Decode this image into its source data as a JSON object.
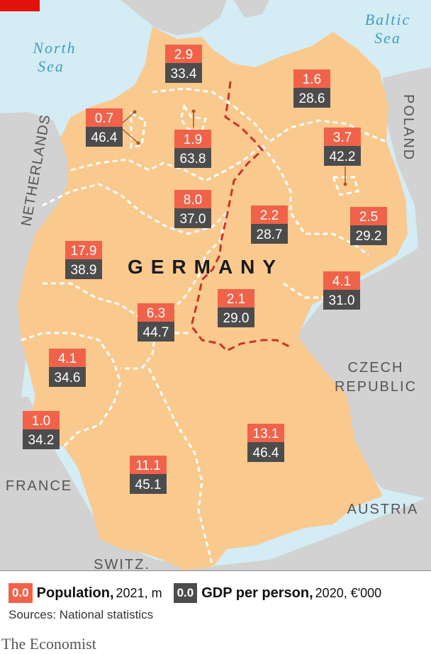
{
  "colors": {
    "sea": "#d4ecf4",
    "neighbour_land": "#d2d2d2",
    "germany": "#f9c98e",
    "state_border": "#ffffff",
    "inner_border": "#c8342b",
    "population": "#f0624a",
    "gdp": "#4d4c4c",
    "water_text": "#3f9fbf",
    "brand_red": "#e3120b"
  },
  "labels": {
    "country": "GERMANY",
    "north_sea": [
      "North",
      "Sea"
    ],
    "baltic_sea": [
      "Baltic",
      "Sea"
    ],
    "netherlands": "NETHERLANDS",
    "poland": "POLAND",
    "czech": [
      "CZECH",
      "REPUBLIC"
    ],
    "austria": "AUSTRIA",
    "france": "FRANCE",
    "switz": "SWITZ."
  },
  "states": [
    {
      "population": "2.9",
      "gdp": "33.4"
    },
    {
      "population": "1.6",
      "gdp": "28.6"
    },
    {
      "population": "0.7",
      "gdp": "46.4"
    },
    {
      "population": "1.9",
      "gdp": "63.8"
    },
    {
      "population": "3.7",
      "gdp": "42.2"
    },
    {
      "population": "8.0",
      "gdp": "37.0"
    },
    {
      "population": "2.2",
      "gdp": "28.7"
    },
    {
      "population": "2.5",
      "gdp": "29.2"
    },
    {
      "population": "17.9",
      "gdp": "38.9"
    },
    {
      "population": "4.1",
      "gdp": "31.0"
    },
    {
      "population": "2.1",
      "gdp": "29.0"
    },
    {
      "population": "6.3",
      "gdp": "44.7"
    },
    {
      "population": "4.1",
      "gdp": "34.6"
    },
    {
      "population": "1.0",
      "gdp": "34.2"
    },
    {
      "population": "13.1",
      "gdp": "46.4"
    },
    {
      "population": "11.1",
      "gdp": "45.1"
    }
  ],
  "legend": {
    "swatch_text": "0.0",
    "population_label": "Population,",
    "population_unit": "2021, m",
    "gdp_label": "GDP per person,",
    "gdp_unit": "2020, €'000",
    "source": "Sources: National statistics"
  },
  "brand": "The Economist"
}
